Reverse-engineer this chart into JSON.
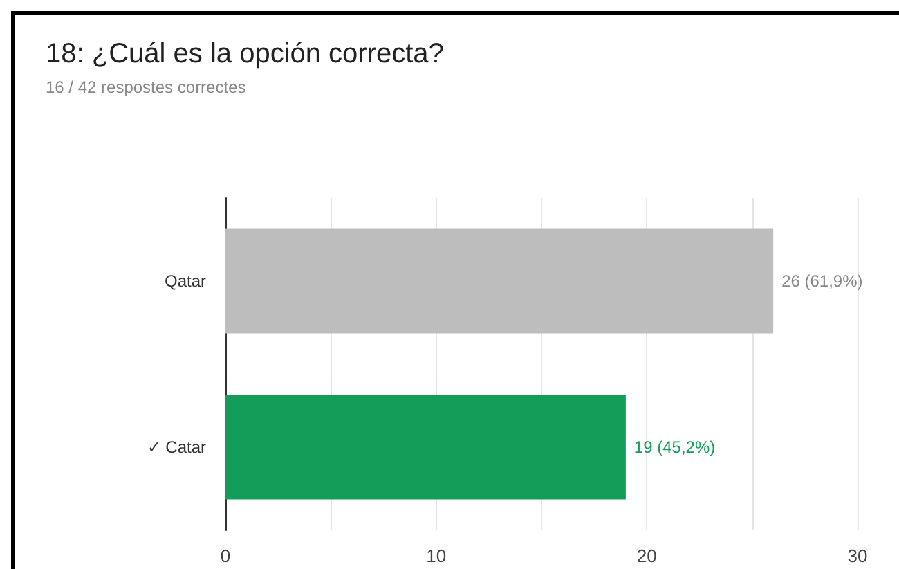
{
  "chart_data": {
    "type": "bar",
    "orientation": "horizontal",
    "title": "18: ¿Cuál es la opción correcta?",
    "subtitle": "16 / 42 respostes correctes",
    "categories": [
      "Qatar",
      "✓ Catar"
    ],
    "values": [
      26,
      19
    ],
    "colors": [
      "#bdbdbd",
      "#139d58"
    ],
    "value_labels": [
      "26 (61,9%)",
      "19 (45,2%)"
    ],
    "xlim": [
      0,
      30
    ],
    "xticks": [
      0,
      {
        "value": 5,
        "label": null
      },
      10,
      {
        "value": 15,
        "label": null
      },
      20,
      {
        "value": 25,
        "label": null
      },
      30
    ],
    "grid": "x"
  }
}
